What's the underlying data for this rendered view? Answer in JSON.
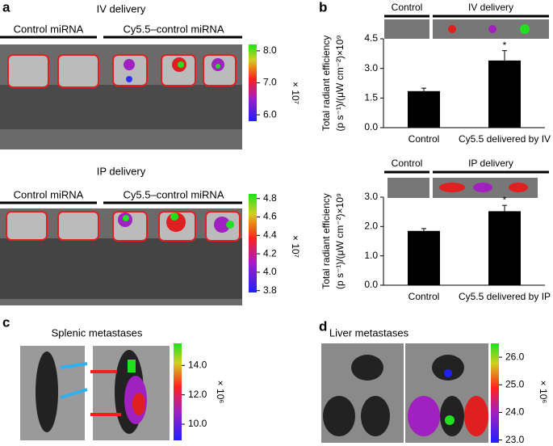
{
  "panel_labels": [
    "a",
    "b",
    "c",
    "d"
  ],
  "panel_a": {
    "iv": {
      "title": "IV delivery",
      "groups": [
        "Control miRNA",
        "Cy5.5–control miRNA"
      ],
      "colorbar": {
        "lim": [
          5.8,
          8.2
        ],
        "ticks": [
          {
            "value": 6,
            "label": "6.0"
          },
          {
            "value": 7,
            "label": "7.0"
          },
          {
            "value": 8,
            "label": "8.0"
          }
        ],
        "unit": "× 10⁷"
      }
    },
    "ip": {
      "title": "IP delivery",
      "groups": [
        "Control miRNA",
        "Cy5.5–control miRNA"
      ],
      "colorbar": {
        "lim": [
          3.78,
          4.85
        ],
        "ticks": [
          {
            "value": 3.8,
            "label": "3.8"
          },
          {
            "value": 4,
            "label": "4.0"
          },
          {
            "value": 4.2,
            "label": "4.2"
          },
          {
            "value": 4.4,
            "label": "4.4"
          },
          {
            "value": 4.6,
            "label": "4.6"
          },
          {
            "value": 4.8,
            "label": "4.8"
          }
        ],
        "unit": "× 10⁷"
      }
    }
  },
  "panel_c": {
    "title": "Splenic metastases",
    "colorbar": {
      "lim": [
        8.9,
        15.5
      ],
      "ticks": [
        {
          "value": 10,
          "label": "10.0"
        },
        {
          "value": 12,
          "label": "12.0"
        },
        {
          "value": 14,
          "label": "14.0"
        }
      ],
      "unit": "× 10⁶"
    }
  },
  "panel_d": {
    "title": "Liver metastases",
    "colorbar": {
      "lim": [
        22.9,
        26.5
      ],
      "ticks": [
        {
          "value": 23,
          "label": "23.0"
        },
        {
          "value": 24,
          "label": "24.0"
        },
        {
          "value": 25,
          "label": "25.0"
        },
        {
          "value": 26,
          "label": "26.0"
        }
      ],
      "unit": "× 10⁶"
    }
  },
  "chart_data": [
    {
      "type": "bar",
      "header": [
        "Control",
        "IV delivery"
      ],
      "y_label": [
        "Total radiant efficiency",
        "(p s⁻¹)/(μW cm⁻²)×10⁹"
      ],
      "categories": [
        "Control",
        "Cy5.5 delivered by IV"
      ],
      "values": [
        1.85,
        3.4
      ],
      "errors": [
        0.15,
        0.5
      ],
      "annotation": "*",
      "color": "#000000",
      "ylim": [
        0,
        4.5
      ],
      "yticks": [
        {
          "value": 0,
          "label": "0.0"
        },
        1.5,
        {
          "value": 3,
          "label": "3.0"
        },
        4.5
      ]
    },
    {
      "type": "bar",
      "header": [
        "Control",
        "IP delivery"
      ],
      "y_label": [
        "Total radiant efficiency",
        "(p s⁻¹)/(μW cm⁻²)×10⁹"
      ],
      "categories": [
        "Control",
        "Cy5.5 delivered by IP"
      ],
      "values": [
        1.85,
        2.52
      ],
      "errors": [
        0.08,
        0.2
      ],
      "annotation": "*",
      "color": "#000000",
      "ylim": [
        0,
        3
      ],
      "yticks": [
        {
          "value": 0,
          "label": "0.0"
        },
        {
          "value": 1,
          "label": "1.0"
        },
        {
          "value": 2,
          "label": "2.0"
        },
        {
          "value": 3,
          "label": "3.0"
        }
      ]
    }
  ]
}
